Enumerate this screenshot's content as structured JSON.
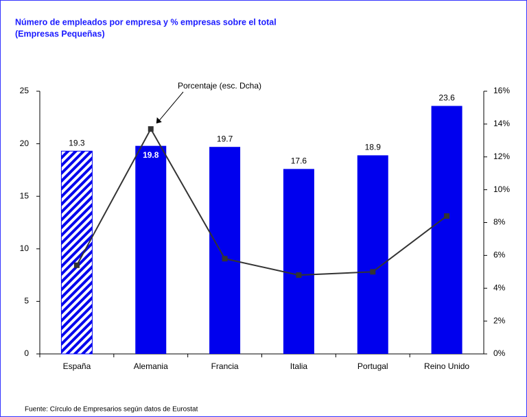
{
  "chart_data": {
    "type": "bar",
    "title": "Número de empleados por empresa y % empresas sobre el total",
    "subtitle": "(Empresas Pequeñas)",
    "source": "Fuente: Círculo de Empresarios según datos de Eurostat",
    "categories": [
      "España",
      "Alemania",
      "Francia",
      "Italia",
      "Portugal",
      "Reino Unido"
    ],
    "series": [
      {
        "type": "bar",
        "color": "#0000ee",
        "values": [
          19.3,
          19.8,
          19.7,
          17.6,
          18.9,
          23.6
        ]
      },
      {
        "type": "line",
        "name": "Porcentaje (esc. Dcha)",
        "color": "#333333",
        "axis": "y2",
        "values": [
          5.4,
          13.7,
          5.8,
          4.8,
          5.0,
          8.4
        ]
      }
    ],
    "ylim": [
      0,
      25
    ],
    "yticks": [
      0,
      5,
      10,
      15,
      20,
      25
    ],
    "y2lim": [
      0,
      16
    ],
    "y2ticks": [
      {
        "value": 0,
        "label": "0%"
      },
      {
        "value": 2,
        "label": "2%"
      },
      {
        "value": 4,
        "label": "4%"
      },
      {
        "value": 6,
        "label": "6%"
      },
      {
        "value": 8,
        "label": "8%"
      },
      {
        "value": 10,
        "label": "10%"
      },
      {
        "value": 12,
        "label": "12%"
      },
      {
        "value": 14,
        "label": "14%"
      },
      {
        "value": 16,
        "label": "16%"
      }
    ],
    "grid": false
  }
}
